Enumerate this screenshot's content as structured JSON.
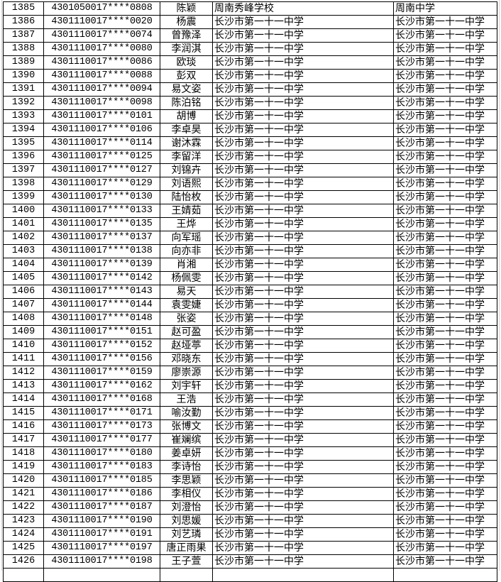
{
  "table": {
    "rows": [
      [
        "1385",
        "4301050017****0808",
        "陈颖",
        "周南秀峰学校",
        "周南中学"
      ],
      [
        "1386",
        "4301110017****0020",
        "杨震",
        "长沙市第一十一中学",
        "长沙市第一十一中学"
      ],
      [
        "1387",
        "4301110017****0074",
        "曾豫泽",
        "长沙市第一十一中学",
        "长沙市第一十一中学"
      ],
      [
        "1388",
        "4301110017****0080",
        "李润淇",
        "长沙市第一十一中学",
        "长沙市第一十一中学"
      ],
      [
        "1389",
        "4301110017****0086",
        "欧琰",
        "长沙市第一十一中学",
        "长沙市第一十一中学"
      ],
      [
        "1390",
        "4301110017****0088",
        "彭双",
        "长沙市第一十一中学",
        "长沙市第一十一中学"
      ],
      [
        "1391",
        "4301110017****0094",
        "易文姿",
        "长沙市第一十一中学",
        "长沙市第一十一中学"
      ],
      [
        "1392",
        "4301110017****0098",
        "陈泊铭",
        "长沙市第一十一中学",
        "长沙市第一十一中学"
      ],
      [
        "1393",
        "4301110017****0101",
        "胡博",
        "长沙市第一十一中学",
        "长沙市第一十一中学"
      ],
      [
        "1394",
        "4301110017****0106",
        "李卓昊",
        "长沙市第一十一中学",
        "长沙市第一十一中学"
      ],
      [
        "1395",
        "4301110017****0114",
        "谢沐霖",
        "长沙市第一十一中学",
        "长沙市第一十一中学"
      ],
      [
        "1396",
        "4301110017****0125",
        "李留洋",
        "长沙市第一十一中学",
        "长沙市第一十一中学"
      ],
      [
        "1397",
        "4301110017****0127",
        "刘锦卉",
        "长沙市第一十一中学",
        "长沙市第一十一中学"
      ],
      [
        "1398",
        "4301110017****0129",
        "刘语熙",
        "长沙市第一十一中学",
        "长沙市第一十一中学"
      ],
      [
        "1399",
        "4301110017****0130",
        "陆怡枚",
        "长沙市第一十一中学",
        "长沙市第一十一中学"
      ],
      [
        "1400",
        "4301110017****0133",
        "王婧茹",
        "长沙市第一十一中学",
        "长沙市第一十一中学"
      ],
      [
        "1401",
        "4301110017****0135",
        "王烨",
        "长沙市第一十一中学",
        "长沙市第一十一中学"
      ],
      [
        "1402",
        "4301110017****0137",
        "向军瑶",
        "长沙市第一十一中学",
        "长沙市第一十一中学"
      ],
      [
        "1403",
        "4301110017****0138",
        "向亦非",
        "长沙市第一十一中学",
        "长沙市第一十一中学"
      ],
      [
        "1404",
        "4301110017****0139",
        "肖湘",
        "长沙市第一十一中学",
        "长沙市第一十一中学"
      ],
      [
        "1405",
        "4301110017****0142",
        "杨佩雯",
        "长沙市第一十一中学",
        "长沙市第一十一中学"
      ],
      [
        "1406",
        "4301110017****0143",
        "易天",
        "长沙市第一十一中学",
        "长沙市第一十一中学"
      ],
      [
        "1407",
        "4301110017****0144",
        "袁雯婕",
        "长沙市第一十一中学",
        "长沙市第一十一中学"
      ],
      [
        "1408",
        "4301110017****0148",
        "张姿",
        "长沙市第一十一中学",
        "长沙市第一十一中学"
      ],
      [
        "1409",
        "4301110017****0151",
        "赵可盈",
        "长沙市第一十一中学",
        "长沙市第一十一中学"
      ],
      [
        "1410",
        "4301110017****0152",
        "赵垭葶",
        "长沙市第一十一中学",
        "长沙市第一十一中学"
      ],
      [
        "1411",
        "4301110017****0156",
        "邓晓东",
        "长沙市第一十一中学",
        "长沙市第一十一中学"
      ],
      [
        "1412",
        "4301110017****0159",
        "廖崇源",
        "长沙市第一十一中学",
        "长沙市第一十一中学"
      ],
      [
        "1413",
        "4301110017****0162",
        "刘宇轩",
        "长沙市第一十一中学",
        "长沙市第一十一中学"
      ],
      [
        "1414",
        "4301110017****0168",
        "王浩",
        "长沙市第一十一中学",
        "长沙市第一十一中学"
      ],
      [
        "1415",
        "4301110017****0171",
        "喻汝勤",
        "长沙市第一十一中学",
        "长沙市第一十一中学"
      ],
      [
        "1416",
        "4301110017****0173",
        "张博文",
        "长沙市第一十一中学",
        "长沙市第一十一中学"
      ],
      [
        "1417",
        "4301110017****0177",
        "崔斓缤",
        "长沙市第一十一中学",
        "长沙市第一十一中学"
      ],
      [
        "1418",
        "4301110017****0180",
        "姜卓妍",
        "长沙市第一十一中学",
        "长沙市第一十一中学"
      ],
      [
        "1419",
        "4301110017****0183",
        "李诗怡",
        "长沙市第一十一中学",
        "长沙市第一十一中学"
      ],
      [
        "1420",
        "4301110017****0185",
        "李思颖",
        "长沙市第一十一中学",
        "长沙市第一十一中学"
      ],
      [
        "1421",
        "4301110017****0186",
        "李相仪",
        "长沙市第一十一中学",
        "长沙市第一十一中学"
      ],
      [
        "1422",
        "4301110017****0187",
        "刘澄怡",
        "长沙市第一十一中学",
        "长沙市第一十一中学"
      ],
      [
        "1423",
        "4301110017****0190",
        "刘思媛",
        "长沙市第一十一中学",
        "长沙市第一十一中学"
      ],
      [
        "1424",
        "4301110017****0191",
        "刘艺璘",
        "长沙市第一十一中学",
        "长沙市第一十一中学"
      ],
      [
        "1425",
        "4301110017****0197",
        "唐正雨果",
        "长沙市第一十一中学",
        "长沙市第一十一中学"
      ],
      [
        "1426",
        "4301110017****0198",
        "王子萱",
        "长沙市第一十一中学",
        "长沙市第一十一中学"
      ]
    ]
  }
}
